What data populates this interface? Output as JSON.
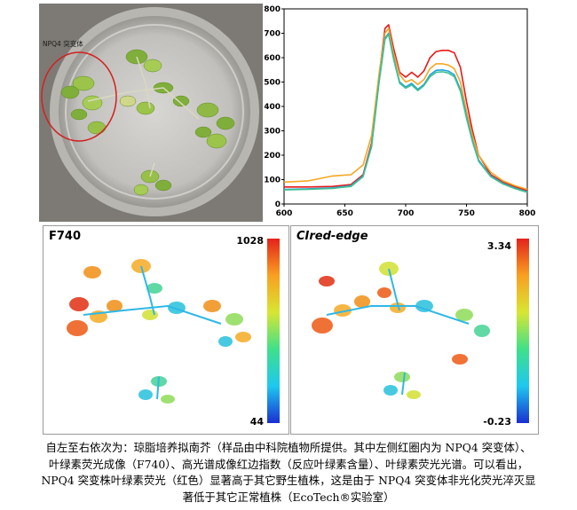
{
  "photo": {
    "label": "NPQ4 突变体"
  },
  "chart_data": {
    "type": "line",
    "title": "",
    "xlabel": "",
    "ylabel": "",
    "xlim": [
      600,
      800
    ],
    "ylim": [
      0,
      800
    ],
    "xticks": [
      "600",
      "650",
      "700",
      "750",
      "800"
    ],
    "yticks": [
      "0",
      "100",
      "200",
      "300",
      "400",
      "500",
      "600",
      "700",
      "800"
    ],
    "grid": false,
    "series": [
      {
        "color": "#e8181a",
        "x": [
          600,
          620,
          640,
          655,
          665,
          672,
          678,
          683,
          686,
          690,
          695,
          700,
          705,
          710,
          715,
          720,
          725,
          730,
          735,
          740,
          745,
          750,
          755,
          760,
          770,
          780,
          790,
          800
        ],
        "y": [
          70,
          70,
          72,
          80,
          120,
          250,
          520,
          720,
          735,
          640,
          540,
          520,
          540,
          520,
          545,
          600,
          625,
          630,
          630,
          620,
          560,
          420,
          300,
          200,
          120,
          90,
          70,
          55
        ]
      },
      {
        "color": "#f5a623",
        "x": [
          600,
          620,
          640,
          655,
          665,
          672,
          678,
          683,
          686,
          690,
          695,
          700,
          705,
          710,
          715,
          720,
          725,
          730,
          735,
          740,
          745,
          750,
          755,
          760,
          770,
          780,
          790,
          800
        ],
        "y": [
          90,
          95,
          115,
          120,
          160,
          280,
          530,
          700,
          720,
          620,
          530,
          500,
          510,
          490,
          510,
          555,
          575,
          575,
          570,
          555,
          500,
          380,
          280,
          200,
          130,
          95,
          75,
          60
        ]
      },
      {
        "color": "#22a3e0",
        "x": [
          600,
          620,
          640,
          655,
          665,
          672,
          678,
          683,
          686,
          690,
          695,
          700,
          705,
          710,
          715,
          720,
          725,
          730,
          735,
          740,
          745,
          750,
          755,
          760,
          770,
          780,
          790,
          800
        ],
        "y": [
          60,
          62,
          66,
          75,
          115,
          240,
          500,
          680,
          700,
          600,
          500,
          480,
          495,
          470,
          490,
          530,
          548,
          550,
          545,
          530,
          470,
          360,
          260,
          180,
          115,
          85,
          65,
          50
        ]
      },
      {
        "color": "#3fbf8f",
        "x": [
          600,
          620,
          640,
          655,
          665,
          672,
          678,
          683,
          686,
          690,
          695,
          700,
          705,
          710,
          715,
          720,
          725,
          730,
          735,
          740,
          745,
          750,
          755,
          760,
          770,
          780,
          790,
          800
        ],
        "y": [
          58,
          60,
          64,
          72,
          112,
          235,
          495,
          675,
          695,
          595,
          495,
          475,
          488,
          465,
          485,
          522,
          540,
          542,
          537,
          522,
          462,
          352,
          255,
          175,
          112,
          82,
          63,
          48
        ]
      }
    ]
  },
  "maps": [
    {
      "title": "F740",
      "max": "1028",
      "min": "44"
    },
    {
      "title": "CIred-edge",
      "max": "3.34",
      "min": "-0.23"
    }
  ],
  "caption": {
    "line1": "自左至右依次为：琼脂培养拟南芥（样品由中科院植物所提供。其中左侧红圈内为 NPQ4 突变体）、",
    "line2": "叶绿素荧光成像（F740）、高光谱成像红边指数（反应叶绿素含量）、叶绿素荧光光谱。可以看出，",
    "line3": "NPQ4 突变株叶绿素荧光（红色）显著高于其它野生植株，这是由于 NPQ4 突变体非光化荧光淬灭显",
    "line4": "著低于其它正常植株（EcoTech®实验室）"
  }
}
